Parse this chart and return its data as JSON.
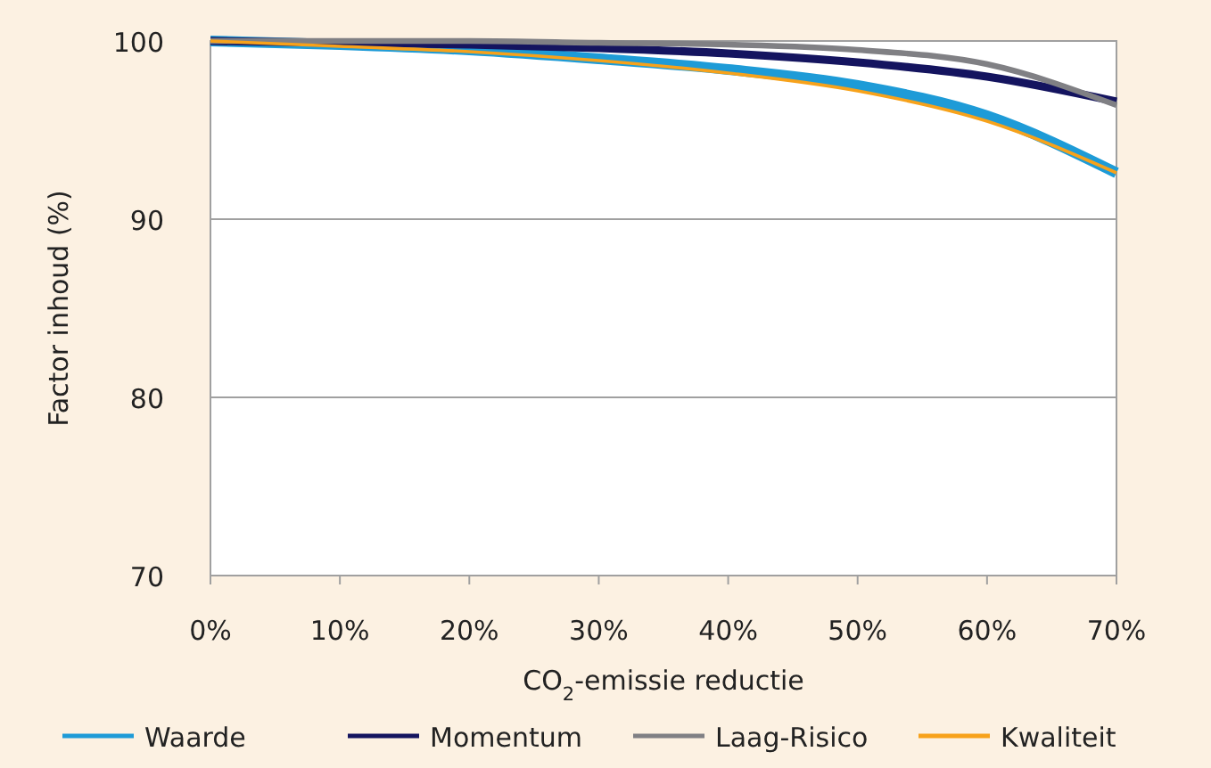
{
  "chart_data": {
    "type": "line",
    "xlabel": "CO$_{2}$-emissie reductie",
    "ylabel": "Factor inhoud (%)",
    "x": [
      0,
      10,
      20,
      30,
      40,
      50,
      60,
      70
    ],
    "xlim": [
      0,
      70
    ],
    "xticks": [
      {
        "value": 0,
        "label": "0%"
      },
      {
        "value": 10,
        "label": "10%"
      },
      {
        "value": 20,
        "label": "20%"
      },
      {
        "value": 30,
        "label": "30%"
      },
      {
        "value": 40,
        "label": "40%"
      },
      {
        "value": 50,
        "label": "50%"
      },
      {
        "value": 60,
        "label": "60%"
      },
      {
        "value": 70,
        "label": "70%"
      }
    ],
    "ylim": [
      70,
      100
    ],
    "yticks": [
      70,
      80,
      90,
      100
    ],
    "grid": "y",
    "legend": "bottom",
    "marker": "none",
    "line_style": "solid",
    "series": [
      {
        "name": "Waarde",
        "color": "#1e9bd7",
        "values": [
          100,
          99.8,
          99.5,
          99.0,
          98.4,
          97.5,
          95.8,
          92.6
        ]
      },
      {
        "name": "Momentum",
        "color": "#14145f",
        "values": [
          100,
          99.9,
          99.8,
          99.6,
          99.3,
          98.8,
          98.0,
          96.6
        ]
      },
      {
        "name": "Laag-Risico",
        "color": "#808084",
        "values": [
          100,
          100,
          100,
          99.9,
          99.8,
          99.5,
          98.7,
          96.4
        ]
      },
      {
        "name": "Kwaliteit",
        "color": "#f7a21b",
        "values": [
          100,
          99.7,
          99.4,
          98.9,
          98.2,
          97.2,
          95.5,
          92.6
        ]
      }
    ]
  }
}
